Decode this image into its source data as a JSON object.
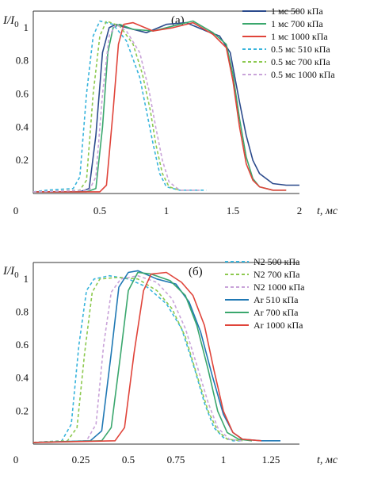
{
  "chart_data": [
    {
      "type": "line",
      "panel_label": "(a)",
      "y_label_main": "I/I",
      "y_label_sub": "0",
      "x_label": "t, мс",
      "xlim": [
        0,
        2
      ],
      "ylim": [
        0,
        1.1
      ],
      "x_ticks": [
        "0",
        "0.5",
        "1",
        "1.5",
        "2"
      ],
      "y_ticks": [
        "0.2",
        "0.4",
        "0.6",
        "0.8",
        "1"
      ],
      "grid": false,
      "legend_position": "top-right",
      "series": [
        {
          "name": "1 мс 500 кПа",
          "color": "#2b4a8c",
          "dash": false,
          "x": [
            0,
            0.35,
            0.42,
            0.47,
            0.52,
            0.57,
            0.62,
            0.7,
            0.85,
            1.0,
            1.15,
            1.3,
            1.4,
            1.48,
            1.55,
            1.6,
            1.65,
            1.7,
            1.8,
            1.9,
            2.0
          ],
          "y": [
            0.01,
            0.01,
            0.03,
            0.35,
            0.85,
            1.0,
            1.02,
            1.0,
            0.97,
            1.02,
            1.03,
            0.98,
            0.95,
            0.85,
            0.55,
            0.35,
            0.2,
            0.12,
            0.06,
            0.05,
            0.05
          ]
        },
        {
          "name": "1 мс 700 кПа",
          "color": "#3aa76d",
          "dash": false,
          "x": [
            0,
            0.4,
            0.47,
            0.52,
            0.56,
            0.6,
            0.65,
            0.75,
            0.9,
            1.05,
            1.2,
            1.35,
            1.45,
            1.5,
            1.55,
            1.6,
            1.65,
            1.7,
            1.8,
            1.9
          ],
          "y": [
            0.01,
            0.01,
            0.03,
            0.4,
            0.85,
            1.0,
            1.02,
            0.99,
            0.98,
            1.01,
            1.04,
            0.97,
            0.9,
            0.72,
            0.45,
            0.22,
            0.09,
            0.04,
            0.02,
            0.02
          ]
        },
        {
          "name": "1 мс 1000 кПа",
          "color": "#e0443a",
          "dash": false,
          "x": [
            0,
            0.5,
            0.55,
            0.6,
            0.64,
            0.68,
            0.75,
            0.9,
            1.05,
            1.2,
            1.35,
            1.45,
            1.5,
            1.55,
            1.6,
            1.65,
            1.7,
            1.8,
            1.9
          ],
          "y": [
            0.01,
            0.01,
            0.05,
            0.5,
            0.9,
            1.02,
            1.03,
            0.98,
            1.0,
            1.03,
            0.96,
            0.88,
            0.68,
            0.4,
            0.18,
            0.08,
            0.04,
            0.02,
            0.02
          ]
        },
        {
          "name": "0.5 мс 510 кПа",
          "color": "#38b4dc",
          "dash": true,
          "x": [
            0,
            0.1,
            0.3,
            0.35,
            0.4,
            0.45,
            0.5,
            0.6,
            0.7,
            0.8,
            0.85,
            0.9,
            0.95,
            1.0,
            1.1,
            1.3
          ],
          "y": [
            0.01,
            0.02,
            0.03,
            0.1,
            0.6,
            0.95,
            1.04,
            1.02,
            0.92,
            0.7,
            0.5,
            0.3,
            0.12,
            0.04,
            0.02,
            0.02
          ]
        },
        {
          "name": "0.5 мс 700 кПа",
          "color": "#8dc94f",
          "dash": true,
          "x": [
            0,
            0.35,
            0.4,
            0.45,
            0.5,
            0.55,
            0.65,
            0.75,
            0.82,
            0.88,
            0.92,
            0.97,
            1.02,
            1.1,
            1.25
          ],
          "y": [
            0.01,
            0.02,
            0.08,
            0.6,
            0.95,
            1.04,
            1.01,
            0.9,
            0.72,
            0.5,
            0.3,
            0.12,
            0.04,
            0.02,
            0.02
          ]
        },
        {
          "name": "0.5 мс 1000 кПа",
          "color": "#c9a3d9",
          "dash": true,
          "x": [
            0,
            0.42,
            0.47,
            0.52,
            0.57,
            0.62,
            0.7,
            0.8,
            0.87,
            0.92,
            0.97,
            1.02,
            1.1,
            1.25
          ],
          "y": [
            0.01,
            0.02,
            0.1,
            0.6,
            0.95,
            1.02,
            0.98,
            0.85,
            0.62,
            0.4,
            0.2,
            0.07,
            0.02,
            0.02
          ]
        }
      ]
    },
    {
      "type": "line",
      "panel_label": "(б)",
      "y_label_main": "I/I",
      "y_label_sub": "0",
      "x_label": "t, мс",
      "xlim": [
        0,
        1.4
      ],
      "ylim": [
        0,
        1.1
      ],
      "x_ticks": [
        "0",
        "0.25",
        "0.5",
        "0.75",
        "1",
        "1.25"
      ],
      "x_tick_values": [
        0,
        0.25,
        0.5,
        0.75,
        1,
        1.25
      ],
      "y_ticks": [
        "0.2",
        "0.4",
        "0.6",
        "0.8",
        "1"
      ],
      "grid": false,
      "legend_position": "top-right",
      "series": [
        {
          "name": "N2 500 кПа",
          "color": "#38b4dc",
          "dash": true,
          "x": [
            0,
            0.15,
            0.2,
            0.24,
            0.28,
            0.32,
            0.4,
            0.5,
            0.6,
            0.7,
            0.78,
            0.85,
            0.9,
            0.95,
            1.0,
            1.05,
            1.1
          ],
          "y": [
            0.01,
            0.02,
            0.12,
            0.6,
            0.93,
            1.0,
            1.02,
            1.0,
            0.95,
            0.85,
            0.7,
            0.45,
            0.25,
            0.1,
            0.04,
            0.02,
            0.02
          ]
        },
        {
          "name": "N2 700 кПа",
          "color": "#8dc94f",
          "dash": true,
          "x": [
            0,
            0.18,
            0.23,
            0.27,
            0.31,
            0.35,
            0.45,
            0.55,
            0.65,
            0.73,
            0.8,
            0.86,
            0.92,
            0.97,
            1.02,
            1.1
          ],
          "y": [
            0.01,
            0.02,
            0.1,
            0.55,
            0.92,
            1.0,
            1.01,
            1.0,
            0.93,
            0.82,
            0.65,
            0.42,
            0.2,
            0.08,
            0.03,
            0.02
          ]
        },
        {
          "name": "N2 1000 кПа",
          "color": "#c9a3d9",
          "dash": true,
          "x": [
            0,
            0.28,
            0.33,
            0.37,
            0.41,
            0.46,
            0.55,
            0.65,
            0.73,
            0.8,
            0.86,
            0.92,
            0.97,
            1.03,
            1.1
          ],
          "y": [
            0.01,
            0.02,
            0.12,
            0.6,
            0.92,
            1.0,
            1.02,
            0.98,
            0.88,
            0.7,
            0.48,
            0.25,
            0.1,
            0.03,
            0.02
          ]
        },
        {
          "name": "Ar 510 кПа",
          "color": "#1f78b4",
          "dash": false,
          "x": [
            0,
            0.3,
            0.36,
            0.41,
            0.45,
            0.5,
            0.55,
            0.65,
            0.75,
            0.82,
            0.88,
            0.94,
            1.0,
            1.05,
            1.1,
            1.2,
            1.3
          ],
          "y": [
            0.01,
            0.02,
            0.08,
            0.55,
            0.95,
            1.04,
            1.05,
            1.0,
            0.97,
            0.86,
            0.68,
            0.42,
            0.18,
            0.07,
            0.03,
            0.02,
            0.02
          ]
        },
        {
          "name": "Ar 700 кПа",
          "color": "#3aa76d",
          "dash": false,
          "x": [
            0,
            0.36,
            0.41,
            0.46,
            0.5,
            0.55,
            0.62,
            0.72,
            0.8,
            0.86,
            0.92,
            0.97,
            1.02,
            1.08,
            1.15
          ],
          "y": [
            0.01,
            0.02,
            0.1,
            0.55,
            0.93,
            1.04,
            1.03,
            0.99,
            0.9,
            0.72,
            0.45,
            0.2,
            0.07,
            0.03,
            0.02
          ]
        },
        {
          "name": "Ar 1000 кПа",
          "color": "#e0443a",
          "dash": false,
          "x": [
            0,
            0.43,
            0.48,
            0.53,
            0.58,
            0.62,
            0.7,
            0.78,
            0.84,
            0.9,
            0.95,
            1.0,
            1.05,
            1.1,
            1.2
          ],
          "y": [
            0.01,
            0.02,
            0.1,
            0.55,
            0.93,
            1.03,
            1.04,
            0.98,
            0.9,
            0.72,
            0.45,
            0.2,
            0.07,
            0.03,
            0.02
          ]
        }
      ]
    }
  ]
}
